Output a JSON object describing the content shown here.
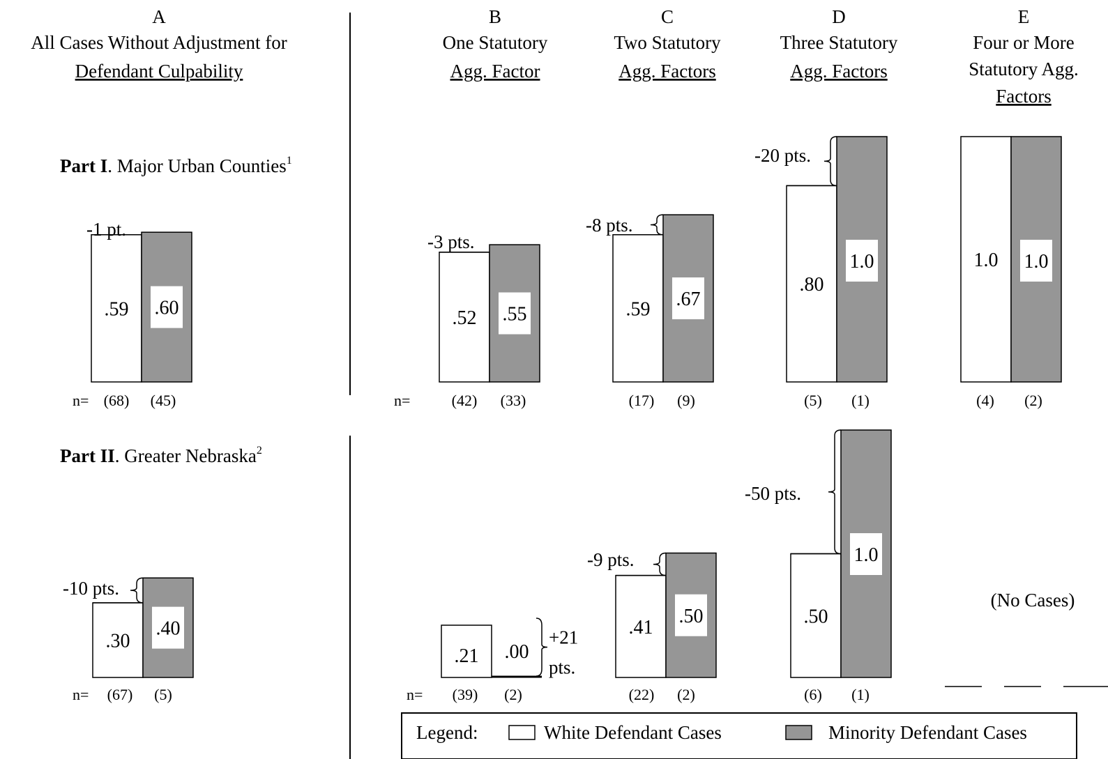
{
  "colors": {
    "white_bar": "#ffffff",
    "minority_bar": "#969696",
    "stroke": "#000000"
  },
  "headers": {
    "A": [
      "A",
      "All Cases Without Adjustment for",
      "Defendant Culpability"
    ],
    "B": [
      "B",
      "One Statutory",
      "Agg. Factor"
    ],
    "C": [
      "C",
      "Two Statutory",
      "Agg. Factors"
    ],
    "D": [
      "D",
      "Three Statutory",
      "Agg. Factors"
    ],
    "E": [
      "E",
      "Four or More",
      "Statutory Agg.",
      "Factors"
    ]
  },
  "parts": {
    "part1": {
      "bold": "Part I",
      "rest": ". Major Urban Counties",
      "sup": "1"
    },
    "part2": {
      "bold": "Part II",
      "rest": ". Greater Nebraska",
      "sup": "2"
    }
  },
  "n_label": "n=",
  "no_cases": "(No Cases)",
  "legend": {
    "title": "Legend:",
    "white": "White Defendant Cases",
    "minority": "Minority Defendant Cases"
  },
  "chart_data": [
    {
      "type": "bar",
      "part": "Part I",
      "column": "A",
      "series": [
        {
          "name": "White Defendant Cases",
          "value": 0.59,
          "label": ".59",
          "n": "(68)"
        },
        {
          "name": "Minority Defendant Cases",
          "value": 0.6,
          "label": ".60",
          "n": "(45)"
        }
      ],
      "difference": "-1 pt."
    },
    {
      "type": "bar",
      "part": "Part I",
      "column": "B",
      "series": [
        {
          "name": "White Defendant Cases",
          "value": 0.52,
          "label": ".52",
          "n": "(42)"
        },
        {
          "name": "Minority Defendant Cases",
          "value": 0.55,
          "label": ".55",
          "n": "(33)"
        }
      ],
      "difference": "-3 pts."
    },
    {
      "type": "bar",
      "part": "Part I",
      "column": "C",
      "series": [
        {
          "name": "White Defendant Cases",
          "value": 0.59,
          "label": ".59",
          "n": "(17)"
        },
        {
          "name": "Minority Defendant Cases",
          "value": 0.67,
          "label": ".67",
          "n": "(9)"
        }
      ],
      "difference": "-8 pts."
    },
    {
      "type": "bar",
      "part": "Part I",
      "column": "D",
      "series": [
        {
          "name": "White Defendant Cases",
          "value": 0.8,
          "label": ".80",
          "n": "(5)"
        },
        {
          "name": "Minority Defendant Cases",
          "value": 1.0,
          "label": "1.0",
          "n": "(1)"
        }
      ],
      "difference": "-20 pts."
    },
    {
      "type": "bar",
      "part": "Part I",
      "column": "E",
      "series": [
        {
          "name": "White Defendant Cases",
          "value": 1.0,
          "label": "1.0",
          "n": "(4)"
        },
        {
          "name": "Minority Defendant Cases",
          "value": 1.0,
          "label": "1.0",
          "n": "(2)"
        }
      ],
      "difference": ""
    },
    {
      "type": "bar",
      "part": "Part II",
      "column": "A",
      "series": [
        {
          "name": "White Defendant Cases",
          "value": 0.3,
          "label": ".30",
          "n": "(67)"
        },
        {
          "name": "Minority Defendant Cases",
          "value": 0.4,
          "label": ".40",
          "n": "(5)"
        }
      ],
      "difference": "-10 pts."
    },
    {
      "type": "bar",
      "part": "Part II",
      "column": "B",
      "series": [
        {
          "name": "White Defendant Cases",
          "value": 0.21,
          "label": ".21",
          "n": "(39)"
        },
        {
          "name": "Minority Defendant Cases",
          "value": 0.0,
          "label": ".00",
          "n": "(2)"
        }
      ],
      "difference": "+21 pts."
    },
    {
      "type": "bar",
      "part": "Part II",
      "column": "C",
      "series": [
        {
          "name": "White Defendant Cases",
          "value": 0.41,
          "label": ".41",
          "n": "(22)"
        },
        {
          "name": "Minority Defendant Cases",
          "value": 0.5,
          "label": ".50",
          "n": "(2)"
        }
      ],
      "difference": "-9 pts."
    },
    {
      "type": "bar",
      "part": "Part II",
      "column": "D",
      "series": [
        {
          "name": "White Defendant Cases",
          "value": 0.5,
          "label": ".50",
          "n": "(6)"
        },
        {
          "name": "Minority Defendant Cases",
          "value": 1.0,
          "label": "1.0",
          "n": "(1)"
        }
      ],
      "difference": "-50 pts."
    }
  ]
}
